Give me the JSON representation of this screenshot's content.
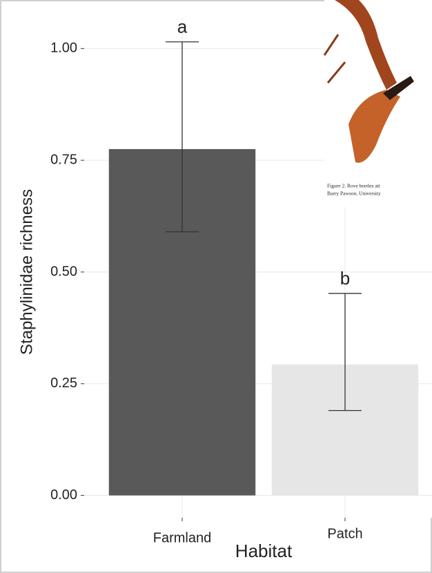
{
  "chart_data": {
    "type": "bar",
    "y_label": "Staphylinidae richness",
    "x_label": "Habitat",
    "categories": [
      "Farmland",
      "Patch"
    ],
    "values": [
      0.775,
      0.293
    ],
    "error_low": [
      0.59,
      0.19
    ],
    "error_high": [
      1.015,
      0.452
    ],
    "colors": [
      "#595959",
      "#e6e6e6"
    ],
    "annotations": [
      "a",
      "b"
    ],
    "ylim": [
      -0.05,
      1.07
    ],
    "yticks": [
      {
        "value": 0,
        "label": "0.00"
      },
      {
        "value": 0.25,
        "label": "0.25"
      },
      {
        "value": 0.5,
        "label": "0.50"
      },
      {
        "value": 0.75,
        "label": "0.75"
      },
      {
        "value": 1,
        "label": "1.00"
      }
    ],
    "grid": true
  },
  "overlay": {
    "caption_lines": [
      "Figure 2. Rove beetles att",
      "Barry Pawson, University"
    ]
  }
}
